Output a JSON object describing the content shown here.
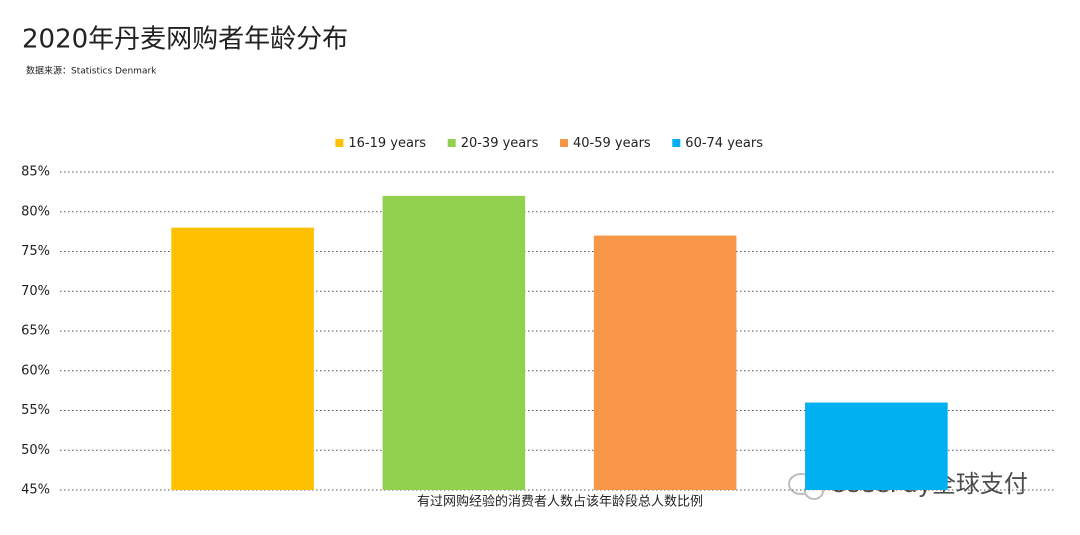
{
  "chart_data": {
    "type": "bar",
    "title": "2020年丹麦网购者年龄分布",
    "subtitle": "数据来源：Statistics Denmark",
    "x_label": "有过网购经验的消费者人数占该年龄段总人数比例",
    "watermark": "UseePay全球支付",
    "categories": [
      null
    ],
    "series": [
      {
        "name": "16-19 years",
        "color": "#FFC000",
        "values": [
          78
        ]
      },
      {
        "name": "20-39 years",
        "color": "#92D050",
        "values": [
          82
        ]
      },
      {
        "name": "40-59 years",
        "color": "#F79646",
        "values": [
          77
        ]
      },
      {
        "name": "60-74 years",
        "color": "#00B0F0",
        "values": [
          56
        ]
      }
    ],
    "ylim": [
      45,
      85
    ],
    "yticks": [
      {
        "value": 45,
        "label": "45%"
      },
      {
        "value": 50,
        "label": "50%"
      },
      {
        "value": 55,
        "label": "55%"
      },
      {
        "value": 60,
        "label": "60%"
      },
      {
        "value": 65,
        "label": "65%"
      },
      {
        "value": 70,
        "label": "70%"
      },
      {
        "value": 75,
        "label": "75%"
      },
      {
        "value": 80,
        "label": "80%"
      },
      {
        "value": 85,
        "label": "85%"
      }
    ],
    "grid": true,
    "legend": "top"
  }
}
